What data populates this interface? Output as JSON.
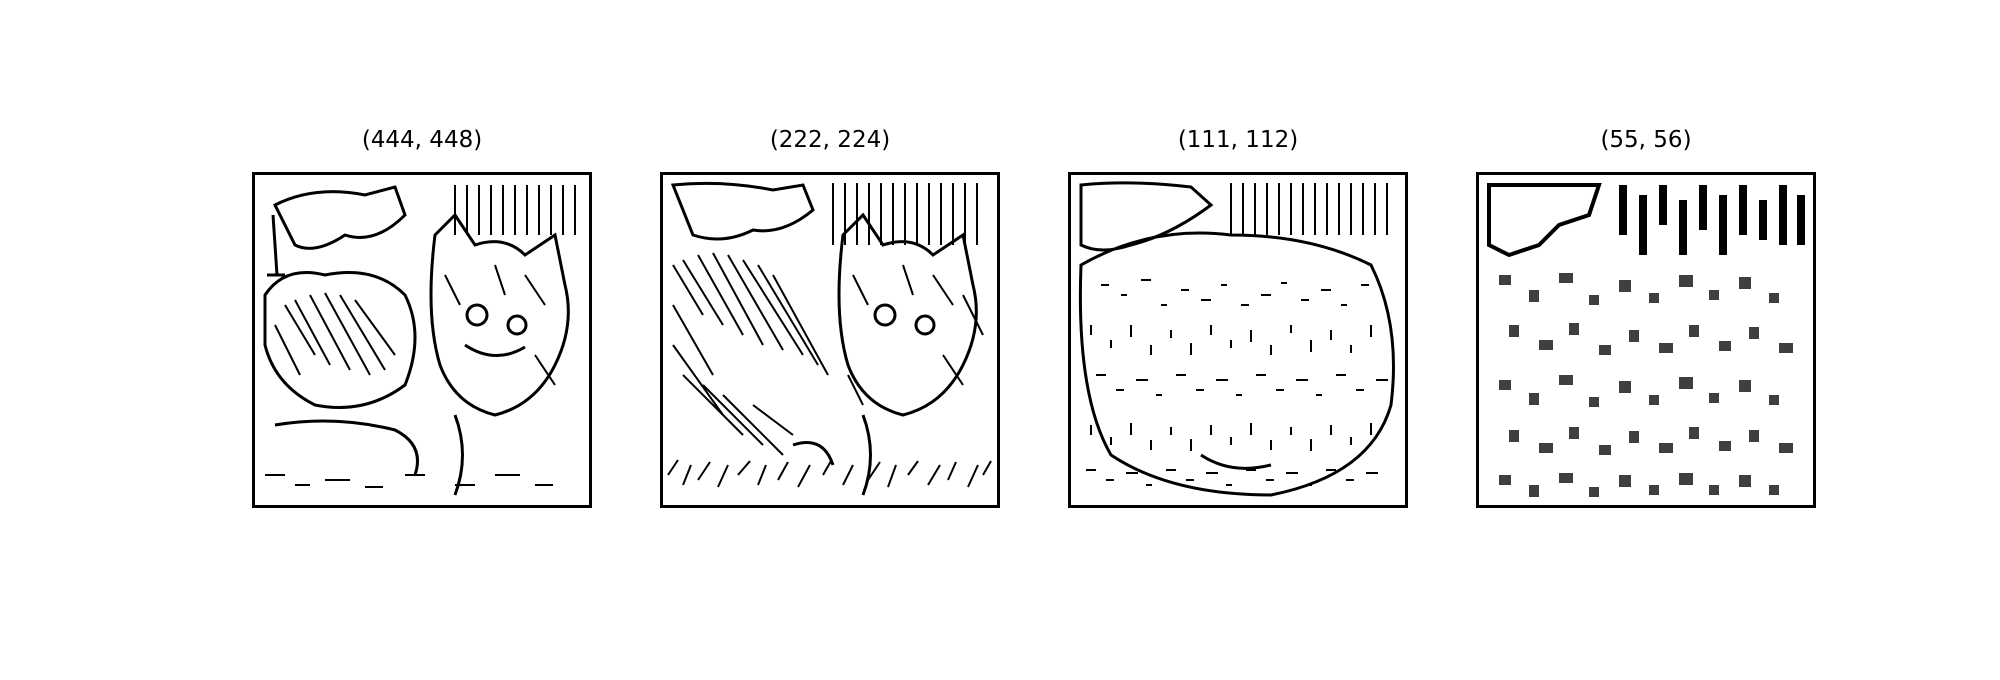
{
  "figure": {
    "panels": [
      {
        "title": "(444, 448)",
        "image": "edge-map of a cat photo, fine resolution"
      },
      {
        "title": "(222, 224)",
        "image": "edge-map of a cat photo, medium resolution"
      },
      {
        "title": "(111, 112)",
        "image": "edge-map of a cat photo, coarse resolution"
      },
      {
        "title": "(55, 56)",
        "image": "edge-map of a cat photo, very coarse resolution"
      }
    ]
  }
}
